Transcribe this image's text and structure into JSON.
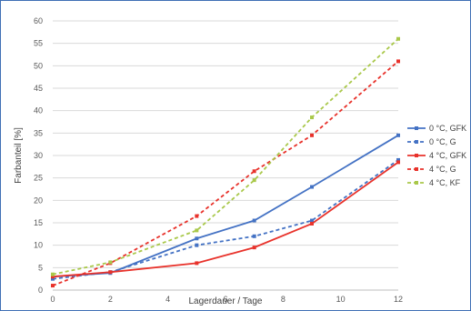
{
  "chart_data": {
    "type": "line",
    "title": "",
    "xlabel": "Lagerdauer / Tage",
    "ylabel": "Farbanteil [%]",
    "xlim": [
      0,
      12
    ],
    "ylim": [
      0,
      60
    ],
    "x_ticks": [
      0,
      2,
      4,
      6,
      8,
      10,
      12
    ],
    "y_ticks": [
      0,
      5,
      10,
      15,
      20,
      25,
      30,
      35,
      40,
      45,
      50,
      55,
      60
    ],
    "grid": "horizontal",
    "legend_position": "right",
    "series": [
      {
        "name": "0 °C, GFK",
        "color": "#4472c4",
        "dash": "solid",
        "x": [
          0,
          2,
          5,
          7,
          9,
          12
        ],
        "y": [
          3.0,
          3.8,
          11.5,
          15.5,
          23.0,
          34.5
        ]
      },
      {
        "name": "0 °C, G",
        "color": "#4472c4",
        "dash": "dashed",
        "x": [
          0,
          2,
          5,
          7,
          9,
          12
        ],
        "y": [
          2.5,
          4.0,
          10.0,
          12.0,
          15.5,
          29.0
        ]
      },
      {
        "name": "4 °C, GFK",
        "color": "#e8322b",
        "dash": "solid",
        "x": [
          0,
          2,
          5,
          7,
          9,
          12
        ],
        "y": [
          3.0,
          4.0,
          6.0,
          9.5,
          14.8,
          28.5
        ]
      },
      {
        "name": "4 °C, G",
        "color": "#e8322b",
        "dash": "dashed",
        "x": [
          0,
          2,
          5,
          7,
          9,
          12
        ],
        "y": [
          1.0,
          6.0,
          16.5,
          26.5,
          34.5,
          51.0
        ]
      },
      {
        "name": "4 °C, KF",
        "color": "#a9c84a",
        "dash": "dashed",
        "x": [
          0,
          2,
          5,
          7,
          9,
          12
        ],
        "y": [
          3.5,
          6.2,
          13.3,
          24.5,
          38.5,
          56.0
        ]
      }
    ]
  }
}
